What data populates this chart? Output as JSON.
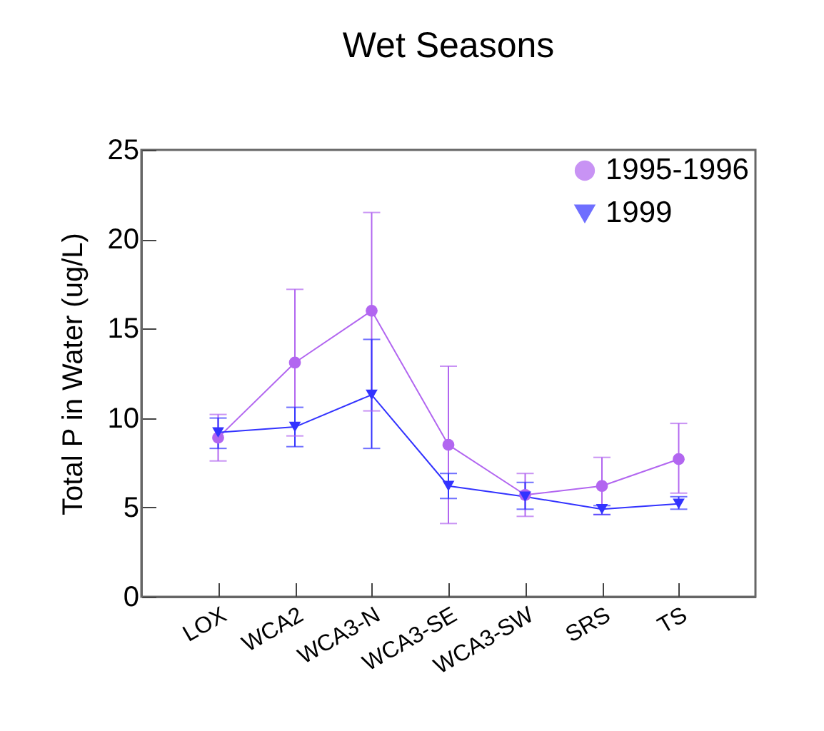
{
  "chart_data": {
    "type": "line",
    "title": "Wet Seasons",
    "ylabel": "Total P in Water (ug/L)",
    "categories": [
      "LOX",
      "WCA2",
      "WCA3-N",
      "WCA3-SE",
      "WCA3-SW",
      "SRS",
      "TS"
    ],
    "series": [
      {
        "name": "1995-1996",
        "color": "#b266f0",
        "marker": "circle",
        "values": [
          8.9,
          13.1,
          16.0,
          8.5,
          5.7,
          6.2,
          7.7
        ],
        "errors": [
          [
            7.6,
            10.2
          ],
          [
            9.0,
            17.2
          ],
          [
            10.4,
            21.5
          ],
          [
            4.1,
            12.9
          ],
          [
            4.5,
            6.9
          ],
          [
            4.6,
            7.8
          ],
          [
            5.8,
            9.7
          ]
        ]
      },
      {
        "name": "1999",
        "color": "#3333ff",
        "marker": "triangle-down",
        "values": [
          9.2,
          9.5,
          11.3,
          6.2,
          5.6,
          4.9,
          5.2
        ],
        "errors": [
          [
            8.3,
            10.0
          ],
          [
            8.4,
            10.6
          ],
          [
            8.3,
            14.4
          ],
          [
            5.5,
            6.9
          ],
          [
            4.9,
            6.4
          ],
          [
            4.6,
            5.1
          ],
          [
            4.9,
            5.6
          ]
        ]
      }
    ],
    "ylim": [
      0,
      25
    ],
    "yticks": [
      0,
      5,
      10,
      15,
      20,
      25
    ],
    "grid": false,
    "legend": "top right"
  }
}
